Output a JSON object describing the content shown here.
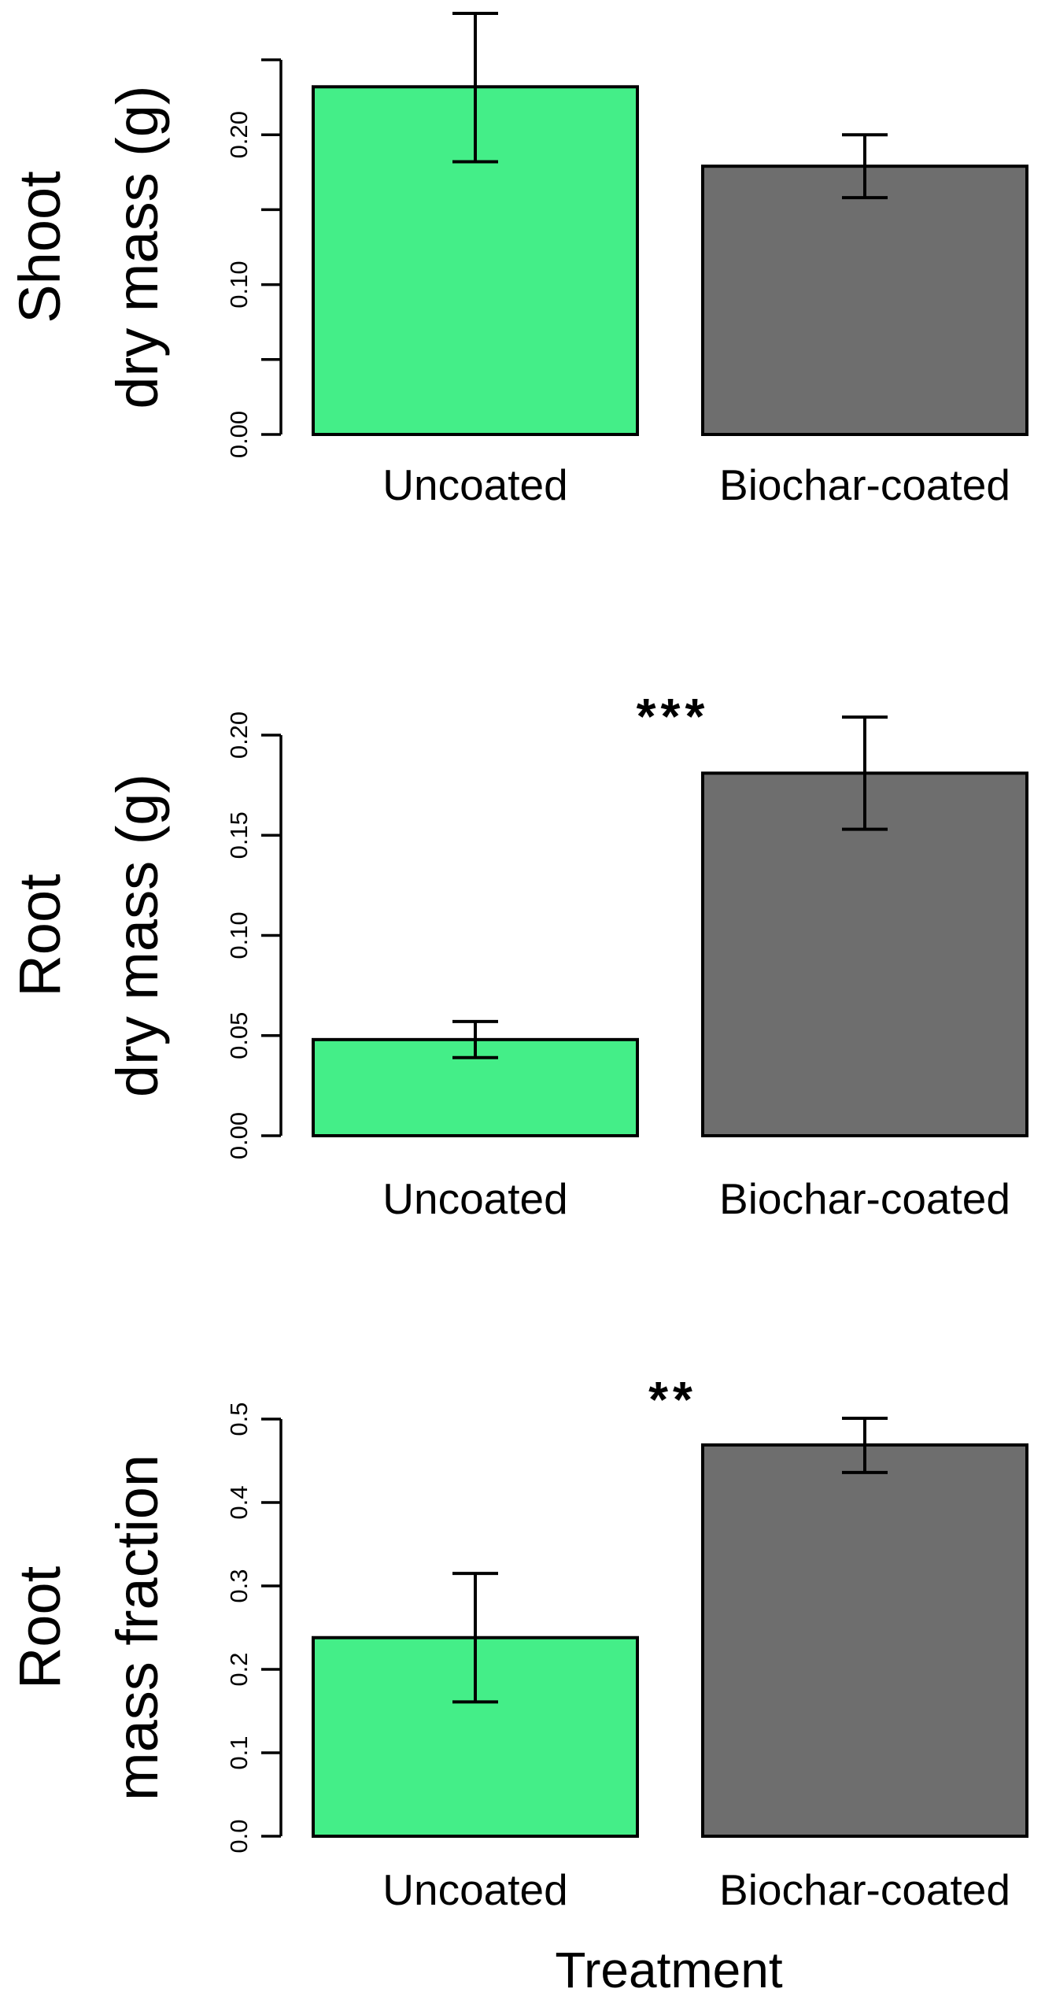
{
  "chart_data": [
    {
      "type": "bar",
      "ylabel_lines": [
        "Shoot",
        "dry mass (g)"
      ],
      "categories": [
        "Uncoated",
        "Biochar-coated"
      ],
      "values": [
        0.232,
        0.179
      ],
      "error_low": [
        0.182,
        0.158
      ],
      "error_high": [
        0.281,
        0.2
      ],
      "colors": [
        "#44EE88",
        "#6E6E6E"
      ],
      "ylim": [
        0,
        0.25
      ],
      "yticks": [
        0.0,
        0.05,
        0.1,
        0.15,
        0.2,
        0.25
      ],
      "ytick_labels": [
        "0.00",
        "",
        "0.10",
        "",
        "0.20",
        ""
      ],
      "significance": ""
    },
    {
      "type": "bar",
      "ylabel_lines": [
        "Root",
        "dry mass (g)"
      ],
      "categories": [
        "Uncoated",
        "Biochar-coated"
      ],
      "values": [
        0.048,
        0.181
      ],
      "error_low": [
        0.039,
        0.153
      ],
      "error_high": [
        0.057,
        0.209
      ],
      "colors": [
        "#44EE88",
        "#6E6E6E"
      ],
      "ylim": [
        0,
        0.2
      ],
      "yticks": [
        0.0,
        0.05,
        0.1,
        0.15,
        0.2
      ],
      "ytick_labels": [
        "0.00",
        "0.05",
        "0.10",
        "0.15",
        "0.20"
      ],
      "significance": "***"
    },
    {
      "type": "bar",
      "ylabel_lines": [
        "Root",
        "mass fraction"
      ],
      "categories": [
        "Uncoated",
        "Biochar-coated"
      ],
      "values": [
        0.238,
        0.469
      ],
      "error_low": [
        0.161,
        0.436
      ],
      "error_high": [
        0.315,
        0.501
      ],
      "colors": [
        "#44EE88",
        "#6E6E6E"
      ],
      "ylim": [
        0,
        0.5
      ],
      "yticks": [
        0.0,
        0.1,
        0.2,
        0.3,
        0.4,
        0.5
      ],
      "ytick_labels": [
        "0.0",
        "0.1",
        "0.2",
        "0.3",
        "0.4",
        "0.5"
      ],
      "significance": "**"
    }
  ],
  "xlabel": "Treatment"
}
